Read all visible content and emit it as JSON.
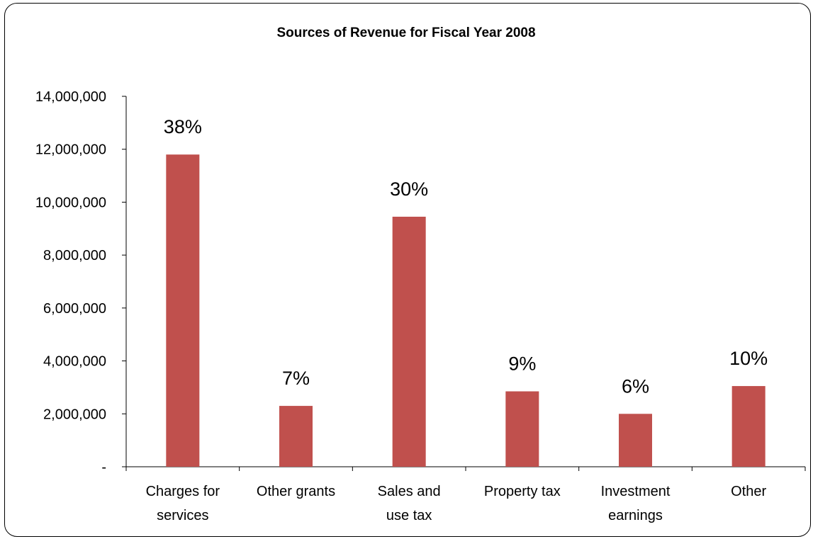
{
  "chart_data": {
    "type": "bar",
    "title": "Sources of Revenue for Fiscal Year 2008",
    "xlabel": "",
    "ylabel": "",
    "ylim": [
      0,
      14000000
    ],
    "yticks": [
      0,
      2000000,
      4000000,
      6000000,
      8000000,
      10000000,
      12000000,
      14000000
    ],
    "ytick_labels": [
      "-",
      "2,000,000",
      "4,000,000",
      "6,000,000",
      "8,000,000",
      "10,000,000",
      "12,000,000",
      "14,000,000"
    ],
    "categories": [
      [
        "Charges for",
        "services"
      ],
      [
        "Other grants"
      ],
      [
        "Sales and",
        "use tax"
      ],
      [
        "Property tax"
      ],
      [
        "Investment",
        "earnings"
      ],
      [
        "Other"
      ]
    ],
    "values": [
      11800000,
      2300000,
      9450000,
      2850000,
      2000000,
      3050000
    ],
    "data_labels": [
      "38%",
      "7%",
      "30%",
      "9%",
      "6%",
      "10%"
    ],
    "bar_color": "#c0504d",
    "grid": false,
    "legend": "none"
  }
}
